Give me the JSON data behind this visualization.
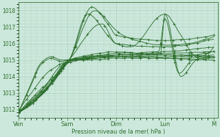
{
  "xlabel": "Pression niveau de la mer( hPa )",
  "ylim": [
    1011.5,
    1018.5
  ],
  "yticks": [
    1012,
    1013,
    1014,
    1015,
    1016,
    1017,
    1018
  ],
  "background_color": "#cce8dc",
  "grid_color": "#aacfbf",
  "line_color": "#2d6e2d",
  "x_day_labels": [
    "Ven",
    "Sam",
    "Dim",
    "Lun",
    "M"
  ],
  "x_day_positions": [
    0,
    48,
    96,
    144,
    192
  ],
  "xlim": [
    0,
    196
  ]
}
